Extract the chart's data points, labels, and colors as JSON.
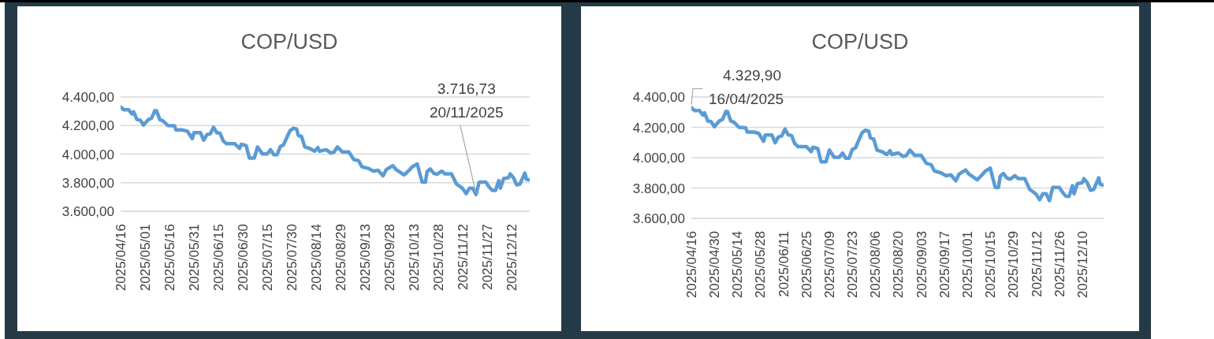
{
  "chart_data": [
    {
      "type": "line",
      "title": "COP/USD",
      "grid": "y",
      "x": [
        "2025-04-16",
        "2025-04-18",
        "2025-04-21",
        "2025-04-23",
        "2025-04-24",
        "2025-04-26",
        "2025-04-28",
        "2025-04-30",
        "2025-05-03",
        "2025-05-05",
        "2025-05-07",
        "2025-05-08",
        "2025-05-10",
        "2025-05-12",
        "2025-05-15",
        "2025-05-19",
        "2025-05-20",
        "2025-05-24",
        "2025-05-27",
        "2025-05-30",
        "2025-05-31",
        "2025-06-04",
        "2025-06-06",
        "2025-06-08",
        "2025-06-10",
        "2025-06-12",
        "2025-06-14",
        "2025-06-16",
        "2025-06-18",
        "2025-06-20",
        "2025-06-25",
        "2025-06-28",
        "2025-06-29",
        "2025-07-02",
        "2025-07-04",
        "2025-07-07",
        "2025-07-09",
        "2025-07-12",
        "2025-07-15",
        "2025-07-17",
        "2025-07-19",
        "2025-07-21",
        "2025-07-23",
        "2025-07-25",
        "2025-07-27",
        "2025-07-29",
        "2025-07-31",
        "2025-08-02",
        "2025-08-03",
        "2025-08-05",
        "2025-08-07",
        "2025-08-10",
        "2025-08-13",
        "2025-08-15",
        "2025-08-16",
        "2025-08-20",
        "2025-08-23",
        "2025-08-25",
        "2025-08-27",
        "2025-08-30",
        "2025-09-03",
        "2025-09-06",
        "2025-09-09",
        "2025-09-11",
        "2025-09-15",
        "2025-09-18",
        "2025-09-21",
        "2025-09-24",
        "2025-09-26",
        "2025-09-28",
        "2025-09-30",
        "2025-10-02",
        "2025-10-04",
        "2025-10-07",
        "2025-10-10",
        "2025-10-12",
        "2025-10-15",
        "2025-10-16",
        "2025-10-18",
        "2025-10-20",
        "2025-10-21",
        "2025-10-23",
        "2025-10-25",
        "2025-10-27",
        "2025-10-30",
        "2025-11-01",
        "2025-11-05",
        "2025-11-08",
        "2025-11-10",
        "2025-11-12",
        "2025-11-14",
        "2025-11-16",
        "2025-11-18",
        "2025-11-20",
        "2025-11-22",
        "2025-11-26",
        "2025-11-28",
        "2025-11-30",
        "2025-12-02",
        "2025-12-04",
        "2025-12-05",
        "2025-12-07",
        "2025-12-10",
        "2025-12-11",
        "2025-12-13",
        "2025-12-15",
        "2025-12-17",
        "2025-12-20",
        "2025-12-21",
        "2025-12-23"
      ],
      "series": [
        {
          "color": "#5b9bd5",
          "values": [
            4329.9,
            4310,
            4310,
            4281,
            4296,
            4242,
            4238,
            4204,
            4242,
            4252,
            4304,
            4304,
            4242,
            4233,
            4200,
            4198,
            4169,
            4169,
            4160,
            4108,
            4150,
            4150,
            4098,
            4137,
            4142,
            4188,
            4150,
            4146,
            4092,
            4073,
            4073,
            4040,
            4069,
            4060,
            3973,
            3973,
            4050,
            4002,
            4002,
            4031,
            3996,
            3996,
            4054,
            4065,
            4117,
            4165,
            4181,
            4175,
            4131,
            4123,
            4050,
            4040,
            4021,
            4046,
            4021,
            4031,
            4008,
            4015,
            4050,
            4015,
            4015,
            3963,
            3954,
            3912,
            3900,
            3881,
            3887,
            3848,
            3892,
            3906,
            3919,
            3892,
            3877,
            3854,
            3887,
            3912,
            3931,
            3887,
            3804,
            3804,
            3877,
            3896,
            3867,
            3858,
            3881,
            3862,
            3862,
            3791,
            3775,
            3758,
            3723,
            3762,
            3762,
            3716.73,
            3804,
            3804,
            3771,
            3746,
            3746,
            3815,
            3762,
            3829,
            3835,
            3862,
            3835,
            3785,
            3791,
            3867,
            3823,
            3819
          ]
        }
      ],
      "xlim": [
        "2025-04-16",
        "2025-12-23"
      ],
      "xticks": [
        {
          "value": "2025-04-16",
          "label": "2025/04/16"
        },
        {
          "value": "2025-05-01",
          "label": "2025/05/01"
        },
        {
          "value": "2025-05-16",
          "label": "2025/05/16"
        },
        {
          "value": "2025-05-31",
          "label": "2025/05/31"
        },
        {
          "value": "2025-06-15",
          "label": "2025/06/15"
        },
        {
          "value": "2025-06-30",
          "label": "2025/06/30"
        },
        {
          "value": "2025-07-15",
          "label": "2025/07/15"
        },
        {
          "value": "2025-07-30",
          "label": "2025/07/30"
        },
        {
          "value": "2025-08-14",
          "label": "2025/08/14"
        },
        {
          "value": "2025-08-29",
          "label": "2025/08/29"
        },
        {
          "value": "2025-09-13",
          "label": "2025/09/13"
        },
        {
          "value": "2025-09-28",
          "label": "2025/09/28"
        },
        {
          "value": "2025-10-13",
          "label": "2025/10/13"
        },
        {
          "value": "2025-10-28",
          "label": "2025/10/28"
        },
        {
          "value": "2025-11-12",
          "label": "2025/11/12"
        },
        {
          "value": "2025-11-27",
          "label": "2025/11/27"
        },
        {
          "value": "2025-12-12",
          "label": "2025/12/12"
        }
      ],
      "ylim": [
        3600,
        4400
      ],
      "yticks": [
        {
          "value": 3600,
          "label": "3.600,00"
        },
        {
          "value": 3800,
          "label": "3.800,00"
        },
        {
          "value": 4000,
          "label": "4.000,00"
        },
        {
          "value": 4200,
          "label": "4.200,00"
        },
        {
          "value": 4400,
          "label": "4.400,00"
        }
      ],
      "annotations": [
        {
          "text": "3.716,73\n20/11/2025",
          "x": "2025-11-20",
          "y": 3716.73
        }
      ]
    },
    {
      "type": "line",
      "title": "COP/USD",
      "grid": "y",
      "x": [
        "2025-04-16",
        "2025-04-18",
        "2025-04-21",
        "2025-04-23",
        "2025-04-24",
        "2025-04-26",
        "2025-04-28",
        "2025-04-30",
        "2025-05-03",
        "2025-05-05",
        "2025-05-07",
        "2025-05-08",
        "2025-05-10",
        "2025-05-12",
        "2025-05-15",
        "2025-05-19",
        "2025-05-20",
        "2025-05-24",
        "2025-05-27",
        "2025-05-30",
        "2025-05-31",
        "2025-06-04",
        "2025-06-06",
        "2025-06-08",
        "2025-06-10",
        "2025-06-12",
        "2025-06-14",
        "2025-06-16",
        "2025-06-18",
        "2025-06-20",
        "2025-06-25",
        "2025-06-28",
        "2025-06-29",
        "2025-07-02",
        "2025-07-04",
        "2025-07-07",
        "2025-07-09",
        "2025-07-12",
        "2025-07-15",
        "2025-07-17",
        "2025-07-19",
        "2025-07-21",
        "2025-07-23",
        "2025-07-25",
        "2025-07-27",
        "2025-07-29",
        "2025-07-31",
        "2025-08-02",
        "2025-08-03",
        "2025-08-05",
        "2025-08-07",
        "2025-08-10",
        "2025-08-13",
        "2025-08-15",
        "2025-08-16",
        "2025-08-20",
        "2025-08-23",
        "2025-08-25",
        "2025-08-27",
        "2025-08-30",
        "2025-09-03",
        "2025-09-06",
        "2025-09-09",
        "2025-09-11",
        "2025-09-15",
        "2025-09-18",
        "2025-09-21",
        "2025-09-24",
        "2025-09-26",
        "2025-09-28",
        "2025-09-30",
        "2025-10-02",
        "2025-10-04",
        "2025-10-07",
        "2025-10-10",
        "2025-10-12",
        "2025-10-15",
        "2025-10-16",
        "2025-10-18",
        "2025-10-20",
        "2025-10-21",
        "2025-10-23",
        "2025-10-25",
        "2025-10-27",
        "2025-10-30",
        "2025-11-01",
        "2025-11-05",
        "2025-11-08",
        "2025-11-10",
        "2025-11-12",
        "2025-11-14",
        "2025-11-16",
        "2025-11-18",
        "2025-11-20",
        "2025-11-22",
        "2025-11-26",
        "2025-11-28",
        "2025-11-30",
        "2025-12-02",
        "2025-12-04",
        "2025-12-05",
        "2025-12-07",
        "2025-12-10",
        "2025-12-11",
        "2025-12-13",
        "2025-12-15",
        "2025-12-17",
        "2025-12-20",
        "2025-12-21",
        "2025-12-23"
      ],
      "series": [
        {
          "color": "#5b9bd5",
          "values": [
            4329.9,
            4310,
            4310,
            4281,
            4296,
            4242,
            4238,
            4204,
            4242,
            4252,
            4304,
            4304,
            4242,
            4233,
            4200,
            4198,
            4169,
            4169,
            4160,
            4108,
            4150,
            4150,
            4098,
            4137,
            4142,
            4188,
            4150,
            4146,
            4092,
            4073,
            4073,
            4040,
            4069,
            4060,
            3973,
            3973,
            4050,
            4002,
            4002,
            4031,
            3996,
            3996,
            4054,
            4065,
            4117,
            4165,
            4181,
            4175,
            4131,
            4123,
            4050,
            4040,
            4021,
            4046,
            4021,
            4031,
            4008,
            4015,
            4050,
            4015,
            4015,
            3963,
            3954,
            3912,
            3900,
            3881,
            3887,
            3848,
            3892,
            3906,
            3919,
            3892,
            3877,
            3854,
            3887,
            3912,
            3931,
            3887,
            3804,
            3804,
            3877,
            3896,
            3867,
            3858,
            3881,
            3862,
            3862,
            3791,
            3775,
            3758,
            3723,
            3762,
            3762,
            3716.73,
            3804,
            3804,
            3771,
            3746,
            3746,
            3815,
            3762,
            3829,
            3835,
            3862,
            3835,
            3785,
            3791,
            3867,
            3823,
            3819
          ]
        }
      ],
      "xlim": [
        "2025-04-16",
        "2025-12-23"
      ],
      "xticks": [
        {
          "value": "2025-04-16",
          "label": "2025/04/16"
        },
        {
          "value": "2025-04-30",
          "label": "2025/04/30"
        },
        {
          "value": "2025-05-14",
          "label": "2025/05/14"
        },
        {
          "value": "2025-05-28",
          "label": "2025/05/28"
        },
        {
          "value": "2025-06-11",
          "label": "2025/06/11"
        },
        {
          "value": "2025-06-25",
          "label": "2025/06/25"
        },
        {
          "value": "2025-07-09",
          "label": "2025/07/09"
        },
        {
          "value": "2025-07-23",
          "label": "2025/07/23"
        },
        {
          "value": "2025-08-06",
          "label": "2025/08/06"
        },
        {
          "value": "2025-08-20",
          "label": "2025/08/20"
        },
        {
          "value": "2025-09-03",
          "label": "2025/09/03"
        },
        {
          "value": "2025-09-17",
          "label": "2025/09/17"
        },
        {
          "value": "2025-10-01",
          "label": "2025/10/01"
        },
        {
          "value": "2025-10-15",
          "label": "2025/10/15"
        },
        {
          "value": "2025-10-29",
          "label": "2025/10/29"
        },
        {
          "value": "2025-11-12",
          "label": "2025/11/12"
        },
        {
          "value": "2025-11-26",
          "label": "2025/11/26"
        },
        {
          "value": "2025-12-10",
          "label": "2025/12/10"
        }
      ],
      "ylim": [
        3600,
        4400
      ],
      "yticks": [
        {
          "value": 3600,
          "label": "3.600,00"
        },
        {
          "value": 3800,
          "label": "3.800,00"
        },
        {
          "value": 4000,
          "label": "4.000,00"
        },
        {
          "value": 4200,
          "label": "4.200,00"
        },
        {
          "value": 4400,
          "label": "4.400,00"
        }
      ],
      "annotations": [
        {
          "text": "4.329,90\n16/04/2025",
          "x": "2025-04-16",
          "y": 4329.9
        }
      ]
    }
  ]
}
